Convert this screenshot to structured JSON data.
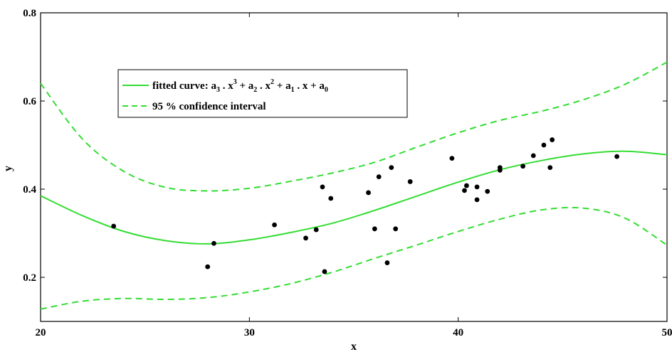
{
  "chart_data": {
    "type": "scatter",
    "title": "",
    "xlabel": "x",
    "ylabel": "y",
    "xlim": [
      20,
      50
    ],
    "ylim": [
      0.1,
      0.8
    ],
    "xticks": [
      20,
      30,
      40,
      50
    ],
    "yticks": [
      0.2,
      0.4,
      0.6,
      0.8
    ],
    "xtick_labels": [
      "20",
      "30",
      "40",
      "50"
    ],
    "ytick_labels": [
      "0.2",
      "0.4",
      "0.6",
      "0.8"
    ],
    "grid": false,
    "legend_position": "top-left",
    "colors": {
      "fit": "#33dd33",
      "points": "#000000",
      "axes": "#000000"
    },
    "legend": {
      "fit_label": {
        "prefix": "fitted curve: a",
        "s3": "3",
        "t1": " . x",
        "p3": "3",
        "t2": " + a",
        "s2": "2",
        "t3": " . x",
        "p2": "2",
        "t4": " + a",
        "s1": "1",
        "t5": " . x + a",
        "s0": "0"
      },
      "ci_label": "95 % confidence interval"
    },
    "points": {
      "x": [
        23.5,
        28.0,
        28.3,
        31.2,
        32.7,
        33.2,
        33.5,
        33.6,
        33.9,
        35.7,
        36.0,
        36.2,
        36.6,
        36.8,
        37.0,
        37.7,
        39.7,
        40.3,
        40.4,
        40.9,
        40.9,
        41.4,
        42.0,
        42.0,
        43.1,
        43.6,
        44.1,
        44.4,
        44.5,
        47.6
      ],
      "y": [
        0.316,
        0.224,
        0.277,
        0.319,
        0.289,
        0.308,
        0.405,
        0.213,
        0.379,
        0.392,
        0.31,
        0.428,
        0.233,
        0.449,
        0.31,
        0.417,
        0.47,
        0.397,
        0.408,
        0.405,
        0.376,
        0.395,
        0.449,
        0.443,
        0.452,
        0.476,
        0.5,
        0.449,
        0.512,
        0.474
      ]
    },
    "series": [
      {
        "kind": "fit",
        "x": [
          20,
          22,
          24,
          26,
          28,
          30,
          32,
          34,
          36,
          38,
          40,
          42,
          44,
          46,
          48,
          50
        ],
        "y": [
          0.385,
          0.34,
          0.304,
          0.283,
          0.276,
          0.285,
          0.302,
          0.323,
          0.352,
          0.384,
          0.416,
          0.444,
          0.465,
          0.48,
          0.486,
          0.478
        ]
      },
      {
        "kind": "ci-upper",
        "x": [
          20,
          22,
          24,
          26,
          28,
          30,
          32,
          34,
          36,
          38,
          40,
          42,
          44,
          46,
          48,
          50
        ],
        "y": [
          0.64,
          0.514,
          0.44,
          0.404,
          0.396,
          0.402,
          0.418,
          0.437,
          0.461,
          0.495,
          0.528,
          0.556,
          0.577,
          0.603,
          0.638,
          0.688
        ]
      },
      {
        "kind": "ci-lower",
        "x": [
          20,
          22,
          24,
          26,
          28,
          30,
          32,
          34,
          36,
          38,
          40,
          42,
          44,
          46,
          48,
          50
        ],
        "y": [
          0.128,
          0.146,
          0.152,
          0.15,
          0.154,
          0.167,
          0.186,
          0.212,
          0.243,
          0.273,
          0.304,
          0.332,
          0.353,
          0.357,
          0.334,
          0.273
        ]
      }
    ]
  }
}
